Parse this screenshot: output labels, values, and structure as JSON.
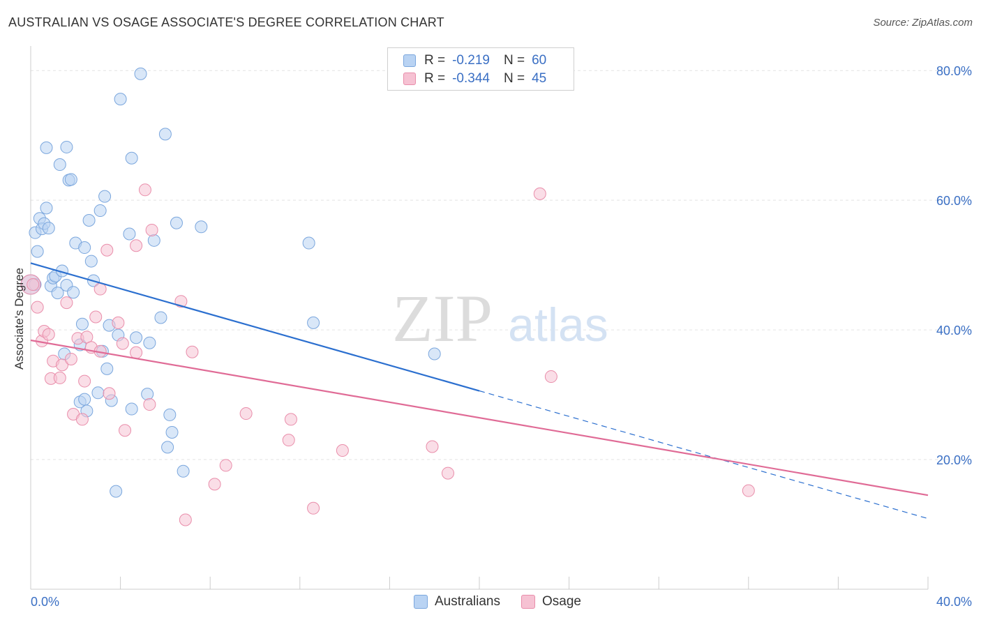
{
  "header": {
    "title": "AUSTRALIAN VS OSAGE ASSOCIATE'S DEGREE CORRELATION CHART",
    "source": "Source: ZipAtlas.com"
  },
  "legend": {
    "rows": [
      {
        "r_label": "R =",
        "r_value": "-0.219",
        "n_label": "N =",
        "n_value": "60"
      },
      {
        "r_label": "R =",
        "r_value": "-0.344",
        "n_label": "N =",
        "n_value": "45"
      }
    ]
  },
  "bottom_legend": {
    "australians": "Australians",
    "osage": "Osage"
  },
  "watermark": {
    "zip": "ZIP",
    "atlas": "atlas"
  },
  "colors": {
    "australians_fill": "#b9d3f3",
    "australians_stroke": "#7aa6dd",
    "australians_line": "#2b6fcf",
    "osage_fill": "#f6c2d3",
    "osage_stroke": "#e98daa",
    "osage_line": "#e06b96",
    "tick_label": "#3a6fc4"
  },
  "chart_data": {
    "type": "scatter",
    "title": "AUSTRALIAN VS OSAGE ASSOCIATE'S DEGREE CORRELATION CHART",
    "xlabel": "",
    "ylabel": "Associate's Degree",
    "xlim": [
      0,
      40
    ],
    "ylim": [
      0,
      82.5
    ],
    "x_tick_labels": [
      "0.0%",
      "40.0%"
    ],
    "y_ticks": [
      20,
      40,
      60,
      80
    ],
    "y_tick_labels": [
      "20.0%",
      "40.0%",
      "60.0%",
      "80.0%"
    ],
    "grid": true,
    "legend_position": "top-center",
    "series": [
      {
        "name": "Australians",
        "r": -0.219,
        "n": 60,
        "trend": {
          "x0": 0,
          "y0": 50.3,
          "x1": 20,
          "y1": 30.6,
          "dashed_to_x": 40,
          "dashed_to_y": 10.9
        },
        "points": [
          [
            0.2,
            55.0
          ],
          [
            0.3,
            52.1
          ],
          [
            0.2,
            47.0
          ],
          [
            0.4,
            57.2
          ],
          [
            0.5,
            55.6
          ],
          [
            0.6,
            56.4
          ],
          [
            0.7,
            58.8
          ],
          [
            0.7,
            68.1
          ],
          [
            0.8,
            55.7
          ],
          [
            0.9,
            46.8
          ],
          [
            1.0,
            48.0
          ],
          [
            1.1,
            48.3
          ],
          [
            1.2,
            45.7
          ],
          [
            1.3,
            65.5
          ],
          [
            1.4,
            49.1
          ],
          [
            1.5,
            36.3
          ],
          [
            1.6,
            46.9
          ],
          [
            1.6,
            68.2
          ],
          [
            1.7,
            63.1
          ],
          [
            1.8,
            63.2
          ],
          [
            1.9,
            45.8
          ],
          [
            2.0,
            53.4
          ],
          [
            2.2,
            37.7
          ],
          [
            2.2,
            28.9
          ],
          [
            2.3,
            40.9
          ],
          [
            2.4,
            29.3
          ],
          [
            2.4,
            52.7
          ],
          [
            2.5,
            27.5
          ],
          [
            2.6,
            56.9
          ],
          [
            2.7,
            50.6
          ],
          [
            2.8,
            47.6
          ],
          [
            3.0,
            30.3
          ],
          [
            3.1,
            58.4
          ],
          [
            3.2,
            36.7
          ],
          [
            3.3,
            60.6
          ],
          [
            3.4,
            34.0
          ],
          [
            3.5,
            40.7
          ],
          [
            3.6,
            29.1
          ],
          [
            3.8,
            15.1
          ],
          [
            3.9,
            39.2
          ],
          [
            4.0,
            75.6
          ],
          [
            4.4,
            54.8
          ],
          [
            4.5,
            27.8
          ],
          [
            4.5,
            66.5
          ],
          [
            4.7,
            38.8
          ],
          [
            4.9,
            79.5
          ],
          [
            5.2,
            30.1
          ],
          [
            5.3,
            38.0
          ],
          [
            5.5,
            53.8
          ],
          [
            5.8,
            41.9
          ],
          [
            6.0,
            70.2
          ],
          [
            6.1,
            21.9
          ],
          [
            6.2,
            26.9
          ],
          [
            6.3,
            24.2
          ],
          [
            6.5,
            56.5
          ],
          [
            6.8,
            18.2
          ],
          [
            7.6,
            55.9
          ],
          [
            12.4,
            53.4
          ],
          [
            12.6,
            41.1
          ],
          [
            18.0,
            36.3
          ]
        ],
        "large_points": [
          [
            0.0,
            47.0
          ]
        ]
      },
      {
        "name": "Osage",
        "r": -0.344,
        "n": 45,
        "trend": {
          "x0": 0,
          "y0": 38.4,
          "x1": 40,
          "y1": 14.5
        },
        "points": [
          [
            0.3,
            43.5
          ],
          [
            0.5,
            38.3
          ],
          [
            0.6,
            39.8
          ],
          [
            0.8,
            39.3
          ],
          [
            0.9,
            32.5
          ],
          [
            1.0,
            35.2
          ],
          [
            1.3,
            32.6
          ],
          [
            1.4,
            34.6
          ],
          [
            1.6,
            44.2
          ],
          [
            1.8,
            35.5
          ],
          [
            1.9,
            27.0
          ],
          [
            2.1,
            38.7
          ],
          [
            2.3,
            26.2
          ],
          [
            2.4,
            32.1
          ],
          [
            2.5,
            38.9
          ],
          [
            2.7,
            37.3
          ],
          [
            2.9,
            42.0
          ],
          [
            3.1,
            36.7
          ],
          [
            3.1,
            46.3
          ],
          [
            3.4,
            52.3
          ],
          [
            3.5,
            30.2
          ],
          [
            3.9,
            41.1
          ],
          [
            4.1,
            37.9
          ],
          [
            4.2,
            24.5
          ],
          [
            4.7,
            36.5
          ],
          [
            4.7,
            53.0
          ],
          [
            5.1,
            61.6
          ],
          [
            5.3,
            28.5
          ],
          [
            5.4,
            55.4
          ],
          [
            6.7,
            44.4
          ],
          [
            6.9,
            10.7
          ],
          [
            7.2,
            36.6
          ],
          [
            8.2,
            16.2
          ],
          [
            8.7,
            19.1
          ],
          [
            9.6,
            27.1
          ],
          [
            11.5,
            23.0
          ],
          [
            11.6,
            26.2
          ],
          [
            12.6,
            12.5
          ],
          [
            13.9,
            21.4
          ],
          [
            17.9,
            22.0
          ],
          [
            18.6,
            17.9
          ],
          [
            22.7,
            61.0
          ],
          [
            23.2,
            32.8
          ],
          [
            32.0,
            15.2
          ],
          [
            0.1,
            47.0
          ]
        ],
        "large_points": [
          [
            0.0,
            47.0
          ]
        ]
      }
    ]
  }
}
